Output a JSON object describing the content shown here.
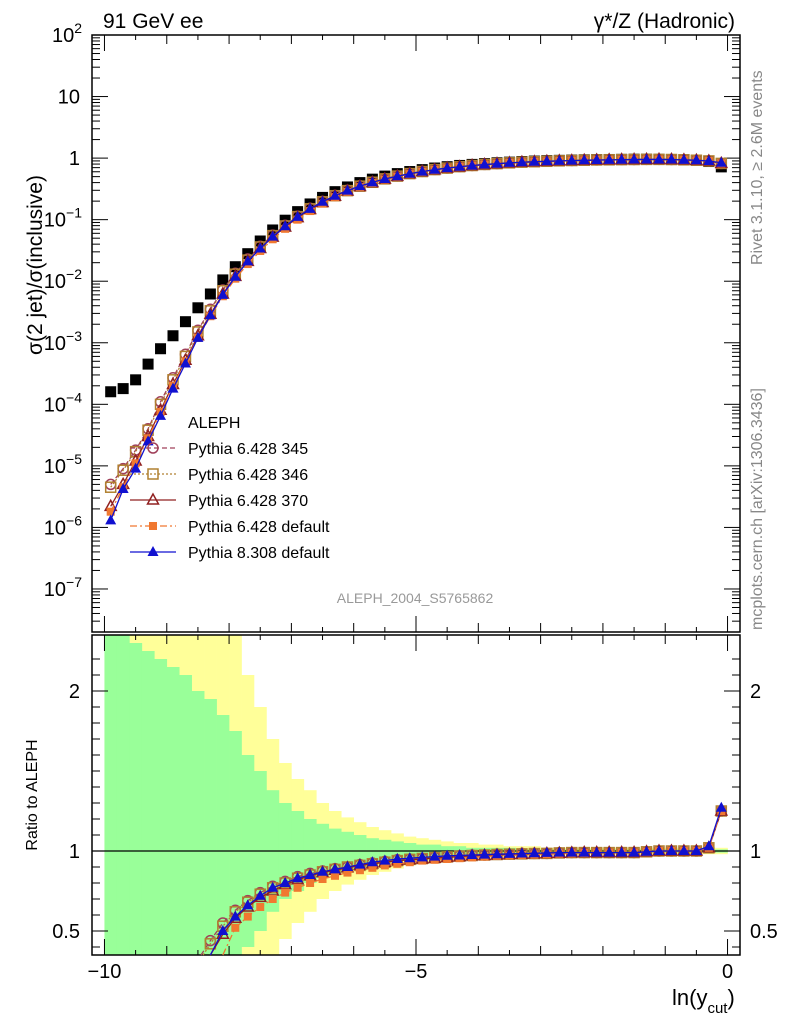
{
  "header": {
    "left_title": "91 GeV ee",
    "right_title": "γ*/Z (Hadronic)",
    "analysis_id": "ALEPH_2004_S5765862",
    "side_note_rivet": "Rivet 3.1.10, ≥ 2.6M events",
    "side_note_site": "mcplots.cern.ch [arXiv:1306.3436]"
  },
  "axes": {
    "ylabel_top": "σ(2 jet)/σ(inclusive)",
    "ylabel_ratio": "Ratio to ALEPH",
    "xlabel_main": "ln(y",
    "xlabel_sub": "cut",
    "xlabel_close": ")",
    "x_tick_labels": [
      "−10",
      "−5",
      "0"
    ],
    "y_tick_labels_ratio": [
      "0.5",
      "1",
      "2"
    ]
  },
  "legend": {
    "data_label": "ALEPH",
    "entries": [
      {
        "label": "Pythia 6.428 345",
        "color": "#a0405a",
        "marker": "circle-open",
        "dash": "5,3"
      },
      {
        "label": "Pythia 6.428 346",
        "color": "#b08030",
        "marker": "square-open",
        "dash": "2,2"
      },
      {
        "label": "Pythia 6.428 370",
        "color": "#902020",
        "marker": "triangle-open",
        "dash": ""
      },
      {
        "label": "Pythia 6.428 default",
        "color": "#f07830",
        "marker": "square-filled",
        "dash": "7,3,2,3"
      },
      {
        "label": "Pythia 8.308 default",
        "color": "#1010d0",
        "marker": "triangle-filled",
        "dash": ""
      }
    ]
  },
  "chart_data": {
    "type": "scatter",
    "yscale_top": "log",
    "xlim": [
      -10.2,
      0.2
    ],
    "ylim_top": [
      2e-08,
      100
    ],
    "ylim_ratio": [
      0.35,
      2.35
    ],
    "x": [
      -9.95,
      -9.85,
      -9.75,
      -9.65,
      -9.55,
      -9.45,
      -9.35,
      -9.25,
      -9.15,
      -9.05,
      -8.95,
      -8.85,
      -8.75,
      -8.65,
      -8.55,
      -8.45,
      -8.35,
      -8.25,
      -8.15,
      -8.05,
      -7.95,
      -7.85,
      -7.75,
      -7.65,
      -7.55,
      -7.45,
      -7.35,
      -7.25,
      -7.15,
      -7.05,
      -6.95,
      -6.85,
      -6.75,
      -6.65,
      -6.55,
      -6.45,
      -6.35,
      -6.25,
      -6.15,
      -6.05,
      -5.95,
      -5.85,
      -5.75,
      -5.65,
      -5.55,
      -5.45,
      -5.35,
      -5.25,
      -5.15,
      -5.05,
      -4.95,
      -4.85,
      -4.75,
      -4.65,
      -4.55,
      -4.45,
      -4.35,
      -4.25,
      -4.15,
      -4.05,
      -3.95,
      -3.85,
      -3.75,
      -3.65,
      -3.55,
      -3.45,
      -3.35,
      -3.25,
      -3.15,
      -3.05,
      -2.95,
      -2.85,
      -2.75,
      -2.65,
      -2.55,
      -2.45,
      -2.35,
      -2.25,
      -2.15,
      -2.05,
      -1.95,
      -1.85,
      -1.75,
      -1.65,
      -1.55,
      -1.45,
      -1.35,
      -1.25,
      -1.15,
      -1.05,
      -0.95,
      -0.85,
      -0.75,
      -0.65,
      -0.55,
      -0.45,
      -0.35,
      -0.25,
      -0.15,
      -0.05
    ],
    "data_points": {
      "x": [
        -9.9,
        -9.7,
        -9.5,
        -9.3,
        -9.1,
        -8.9,
        -8.7,
        -8.5,
        -8.3,
        -8.1,
        -7.9,
        -7.7,
        -7.5,
        -7.3,
        -7.1,
        -6.9,
        -6.7,
        -6.5,
        -6.3,
        -6.1,
        -5.9,
        -5.7,
        -5.5,
        -5.3,
        -5.1,
        -4.9,
        -4.7,
        -4.5,
        -4.3,
        -4.1,
        -3.9,
        -3.7,
        -3.5,
        -3.3,
        -3.1,
        -2.9,
        -2.7,
        -2.5,
        -2.3,
        -2.1,
        -1.9,
        -1.7,
        -1.5,
        -1.3,
        -1.1,
        -0.9,
        -0.7,
        -0.5,
        -0.3,
        -0.1
      ],
      "y": [
        0.00016,
        0.00018,
        0.00025,
        0.00045,
        0.0008,
        0.0013,
        0.0022,
        0.0037,
        0.0062,
        0.0105,
        0.0172,
        0.028,
        0.045,
        0.068,
        0.098,
        0.135,
        0.18,
        0.23,
        0.285,
        0.34,
        0.4,
        0.455,
        0.51,
        0.56,
        0.605,
        0.65,
        0.69,
        0.725,
        0.76,
        0.79,
        0.815,
        0.84,
        0.86,
        0.88,
        0.895,
        0.91,
        0.92,
        0.93,
        0.94,
        0.945,
        0.95,
        0.955,
        0.96,
        0.96,
        0.955,
        0.95,
        0.94,
        0.92,
        0.88,
        0.72
      ]
    },
    "series": [
      {
        "name": "Pythia 6.428 345",
        "x": [
          -9.9,
          -9.7,
          -9.5,
          -9.3,
          -9.1,
          -8.9,
          -8.7,
          -8.5,
          -8.3,
          -8.1,
          -7.9,
          -7.7,
          -7.5,
          -7.3,
          -7.1,
          -6.9,
          -6.7,
          -6.5,
          -6.3,
          -6.1,
          -5.9,
          -5.7,
          -5.5,
          -5.3,
          -5.1,
          -4.9,
          -4.7,
          -4.5,
          -4.3,
          -4.1,
          -3.9,
          -3.7,
          -3.5,
          -3.3,
          -3.1,
          -2.9,
          -2.7,
          -2.5,
          -2.3,
          -2.1,
          -1.9,
          -1.7,
          -1.5,
          -1.3,
          -1.1,
          -0.9,
          -0.7,
          -0.5,
          -0.3,
          -0.1
        ],
        "y": [
          5e-06,
          9e-06,
          1.8e-05,
          4e-05,
          0.00011,
          0.00027,
          0.00065,
          0.0016,
          0.0035,
          0.0072,
          0.0135,
          0.023,
          0.037,
          0.056,
          0.081,
          0.114,
          0.153,
          0.198,
          0.248,
          0.3,
          0.355,
          0.41,
          0.465,
          0.515,
          0.565,
          0.61,
          0.655,
          0.69,
          0.73,
          0.76,
          0.79,
          0.815,
          0.84,
          0.86,
          0.875,
          0.89,
          0.905,
          0.915,
          0.925,
          0.935,
          0.94,
          0.945,
          0.95,
          0.955,
          0.955,
          0.95,
          0.94,
          0.925,
          0.9,
          0.82
        ],
        "ratio": [
          null,
          null,
          null,
          null,
          null,
          null,
          null,
          null,
          0.44,
          0.55,
          0.63,
          0.69,
          0.74,
          0.78,
          0.81,
          0.84,
          0.86,
          0.875,
          0.89,
          0.9,
          0.915,
          0.925,
          0.935,
          0.945,
          0.95,
          0.955,
          0.96,
          0.965,
          0.97,
          0.975,
          0.975,
          0.98,
          0.98,
          0.985,
          0.985,
          0.985,
          0.99,
          0.99,
          0.99,
          0.99,
          0.99,
          0.99,
          0.99,
          0.995,
          1.0,
          1.0,
          1.0,
          1.0,
          1.02,
          1.25
        ]
      },
      {
        "name": "Pythia 6.428 346",
        "x": [
          -9.9,
          -9.7,
          -9.5,
          -9.3,
          -9.1,
          -8.9,
          -8.7,
          -8.5,
          -8.3,
          -8.1,
          -7.9,
          -7.7,
          -7.5,
          -7.3,
          -7.1,
          -6.9,
          -6.7,
          -6.5,
          -6.3,
          -6.1,
          -5.9,
          -5.7,
          -5.5,
          -5.3,
          -5.1,
          -4.9,
          -4.7,
          -4.5,
          -4.3,
          -4.1,
          -3.9,
          -3.7,
          -3.5,
          -3.3,
          -3.1,
          -2.9,
          -2.7,
          -2.5,
          -2.3,
          -2.1,
          -1.9,
          -1.7,
          -1.5,
          -1.3,
          -1.1,
          -0.9,
          -0.7,
          -0.5,
          -0.3,
          -0.1
        ],
        "y": [
          4.5e-06,
          8.5e-06,
          1.7e-05,
          3.8e-05,
          0.0001,
          0.00025,
          0.0006,
          0.0015,
          0.0033,
          0.007,
          0.013,
          0.022,
          0.036,
          0.055,
          0.079,
          0.112,
          0.15,
          0.195,
          0.245,
          0.296,
          0.35,
          0.405,
          0.46,
          0.51,
          0.56,
          0.605,
          0.65,
          0.688,
          0.726,
          0.758,
          0.788,
          0.813,
          0.838,
          0.858,
          0.873,
          0.888,
          0.903,
          0.913,
          0.923,
          0.933,
          0.938,
          0.943,
          0.948,
          0.953,
          0.953,
          0.948,
          0.938,
          0.923,
          0.9,
          0.82
        ],
        "ratio": [
          null,
          null,
          null,
          null,
          null,
          null,
          null,
          null,
          0.42,
          0.53,
          0.62,
          0.68,
          0.73,
          0.77,
          0.8,
          0.83,
          0.85,
          0.87,
          0.885,
          0.9,
          0.91,
          0.92,
          0.93,
          0.94,
          0.948,
          0.953,
          0.958,
          0.963,
          0.968,
          0.972,
          0.975,
          0.978,
          0.98,
          0.982,
          0.984,
          0.985,
          0.988,
          0.99,
          0.99,
          0.99,
          0.99,
          0.99,
          0.99,
          0.995,
          1.0,
          1.0,
          1.0,
          1.0,
          1.02,
          1.25
        ]
      },
      {
        "name": "Pythia 6.428 370",
        "x": [
          -9.9,
          -9.7,
          -9.5,
          -9.3,
          -9.1,
          -8.9,
          -8.7,
          -8.5,
          -8.3,
          -8.1,
          -7.9,
          -7.7,
          -7.5,
          -7.3,
          -7.1,
          -6.9,
          -6.7,
          -6.5,
          -6.3,
          -6.1,
          -5.9,
          -5.7,
          -5.5,
          -5.3,
          -5.1,
          -4.9,
          -4.7,
          -4.5,
          -4.3,
          -4.1,
          -3.9,
          -3.7,
          -3.5,
          -3.3,
          -3.1,
          -2.9,
          -2.7,
          -2.5,
          -2.3,
          -2.1,
          -1.9,
          -1.7,
          -1.5,
          -1.3,
          -1.1,
          -0.9,
          -0.7,
          -0.5,
          -0.3,
          -0.1
        ],
        "y": [
          2.2e-06,
          5e-06,
          1.2e-05,
          3e-05,
          8e-05,
          0.00021,
          0.00052,
          0.0013,
          0.0029,
          0.0062,
          0.012,
          0.021,
          0.034,
          0.052,
          0.076,
          0.108,
          0.146,
          0.19,
          0.24,
          0.292,
          0.346,
          0.4,
          0.455,
          0.506,
          0.556,
          0.602,
          0.646,
          0.686,
          0.722,
          0.755,
          0.785,
          0.81,
          0.835,
          0.855,
          0.872,
          0.886,
          0.9,
          0.91,
          0.92,
          0.93,
          0.936,
          0.941,
          0.946,
          0.95,
          0.95,
          0.946,
          0.936,
          0.92,
          0.897,
          0.82
        ],
        "ratio": [
          null,
          null,
          null,
          null,
          null,
          null,
          null,
          null,
          null,
          0.48,
          0.58,
          0.65,
          0.71,
          0.75,
          0.79,
          0.82,
          0.845,
          0.865,
          0.88,
          0.895,
          0.91,
          0.92,
          0.93,
          0.94,
          0.945,
          0.95,
          0.955,
          0.96,
          0.965,
          0.97,
          0.972,
          0.975,
          0.978,
          0.98,
          0.982,
          0.984,
          0.986,
          0.988,
          0.99,
          0.99,
          0.99,
          0.99,
          0.99,
          0.995,
          1.0,
          1.0,
          1.0,
          1.0,
          1.02,
          1.25
        ]
      },
      {
        "name": "Pythia 6.428 default",
        "x": [
          -9.9,
          -9.7,
          -9.5,
          -9.3,
          -9.1,
          -8.9,
          -8.7,
          -8.5,
          -8.3,
          -8.1,
          -7.9,
          -7.7,
          -7.5,
          -7.3,
          -7.1,
          -6.9,
          -6.7,
          -6.5,
          -6.3,
          -6.1,
          -5.9,
          -5.7,
          -5.5,
          -5.3,
          -5.1,
          -4.9,
          -4.7,
          -4.5,
          -4.3,
          -4.1,
          -3.9,
          -3.7,
          -3.5,
          -3.3,
          -3.1,
          -2.9,
          -2.7,
          -2.5,
          -2.3,
          -2.1,
          -1.9,
          -1.7,
          -1.5,
          -1.3,
          -1.1,
          -0.9,
          -0.7,
          -0.5,
          -0.3,
          -0.1
        ],
        "y": [
          1.8e-06,
          4.5e-06,
          1.1e-05,
          2.8e-05,
          7.5e-05,
          0.0002,
          0.0005,
          0.0012,
          0.0027,
          0.0057,
          0.011,
          0.019,
          0.031,
          0.048,
          0.071,
          0.1,
          0.138,
          0.182,
          0.232,
          0.284,
          0.338,
          0.394,
          0.448,
          0.5,
          0.55,
          0.597,
          0.642,
          0.682,
          0.72,
          0.752,
          0.783,
          0.808,
          0.833,
          0.853,
          0.87,
          0.885,
          0.9,
          0.91,
          0.92,
          0.93,
          0.936,
          0.941,
          0.946,
          0.95,
          0.95,
          0.946,
          0.936,
          0.92,
          0.897,
          0.82
        ],
        "ratio": [
          null,
          null,
          null,
          null,
          null,
          null,
          null,
          null,
          null,
          null,
          0.52,
          0.59,
          0.65,
          0.7,
          0.74,
          0.77,
          0.8,
          0.825,
          0.845,
          0.865,
          0.88,
          0.895,
          0.91,
          0.92,
          0.93,
          0.94,
          0.945,
          0.95,
          0.955,
          0.96,
          0.965,
          0.97,
          0.972,
          0.975,
          0.978,
          0.98,
          0.983,
          0.985,
          0.988,
          0.99,
          0.99,
          0.99,
          0.99,
          0.995,
          1.0,
          1.0,
          1.0,
          1.0,
          1.02,
          1.25
        ]
      },
      {
        "name": "Pythia 8.308 default",
        "x": [
          -9.9,
          -9.7,
          -9.5,
          -9.3,
          -9.1,
          -8.9,
          -8.7,
          -8.5,
          -8.3,
          -8.1,
          -7.9,
          -7.7,
          -7.5,
          -7.3,
          -7.1,
          -6.9,
          -6.7,
          -6.5,
          -6.3,
          -6.1,
          -5.9,
          -5.7,
          -5.5,
          -5.3,
          -5.1,
          -4.9,
          -4.7,
          -4.5,
          -4.3,
          -4.1,
          -3.9,
          -3.7,
          -3.5,
          -3.3,
          -3.1,
          -2.9,
          -2.7,
          -2.5,
          -2.3,
          -2.1,
          -1.9,
          -1.7,
          -1.5,
          -1.3,
          -1.1,
          -0.9,
          -0.7,
          -0.5,
          -0.3,
          -0.1
        ],
        "y": [
          1.3e-06,
          4.2e-06,
          9e-06,
          2.5e-05,
          6.5e-05,
          0.00018,
          0.00046,
          0.0012,
          0.0028,
          0.006,
          0.0118,
          0.021,
          0.034,
          0.053,
          0.078,
          0.111,
          0.15,
          0.195,
          0.245,
          0.296,
          0.35,
          0.404,
          0.458,
          0.508,
          0.558,
          0.604,
          0.648,
          0.687,
          0.724,
          0.756,
          0.786,
          0.811,
          0.836,
          0.856,
          0.873,
          0.887,
          0.901,
          0.911,
          0.921,
          0.931,
          0.937,
          0.942,
          0.947,
          0.951,
          0.951,
          0.947,
          0.937,
          0.921,
          0.897,
          0.84
        ],
        "ratio": [
          null,
          null,
          null,
          null,
          null,
          null,
          null,
          null,
          null,
          0.5,
          0.59,
          0.66,
          0.72,
          0.77,
          0.8,
          0.83,
          0.85,
          0.87,
          0.885,
          0.9,
          0.915,
          0.93,
          0.94,
          0.95,
          0.955,
          0.96,
          0.965,
          0.97,
          0.972,
          0.975,
          0.977,
          0.98,
          0.982,
          0.984,
          0.986,
          0.988,
          0.99,
          0.99,
          0.99,
          0.99,
          0.99,
          0.99,
          0.99,
          0.995,
          1.0,
          1.0,
          1.0,
          1.0,
          1.03,
          1.27
        ]
      }
    ],
    "bands": {
      "yellow_half_width": [
        2.5,
        2.5,
        2.5,
        2.5,
        2.5,
        2.5,
        2.0,
        1.9,
        1.8,
        1.7,
        1.4,
        1.1,
        0.9,
        0.7,
        0.55,
        0.45,
        0.38,
        0.3,
        0.25,
        0.21,
        0.18,
        0.15,
        0.13,
        0.11,
        0.09,
        0.08,
        0.07,
        0.06,
        0.05,
        0.05,
        0.04,
        0.04,
        0.03,
        0.03,
        0.03,
        0.02,
        0.02,
        0.02,
        0.02,
        0.02,
        0.02,
        0.02,
        0.02,
        0.02,
        0.02,
        0.02,
        0.02,
        0.02,
        0.02,
        0.02
      ],
      "green_half_width": [
        2.5,
        2.5,
        1.3,
        1.25,
        1.2,
        1.15,
        1.1,
        1.0,
        0.95,
        0.85,
        0.75,
        0.6,
        0.5,
        0.38,
        0.3,
        0.25,
        0.2,
        0.17,
        0.14,
        0.12,
        0.1,
        0.08,
        0.07,
        0.06,
        0.05,
        0.04,
        0.04,
        0.03,
        0.03,
        0.02,
        0.02,
        0.02,
        0.02,
        0.01,
        0.01,
        0.01,
        0.01,
        0.01,
        0.01,
        0.01,
        0.01,
        0.01,
        0.01,
        0.01,
        0.01,
        0.01,
        0.01,
        0.01,
        0.01,
        0.01
      ]
    }
  }
}
